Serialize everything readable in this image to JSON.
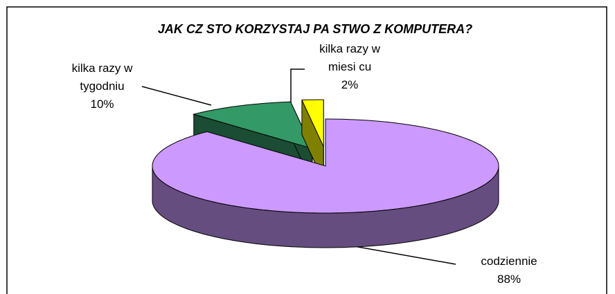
{
  "chart_data": {
    "type": "pie",
    "title": "JAK CZ  STO KORZYSTAJ   PA   STWO Z KOMPUTERA?",
    "categories": [
      "codziennie",
      "kilka razy w tygodniu",
      "kilka razy w miesi cu"
    ],
    "values": [
      88,
      10,
      2
    ],
    "value_labels": [
      "88%",
      "10%",
      "2%"
    ],
    "colors": [
      "#cc99ff",
      "#339966",
      "#ffff00"
    ]
  }
}
